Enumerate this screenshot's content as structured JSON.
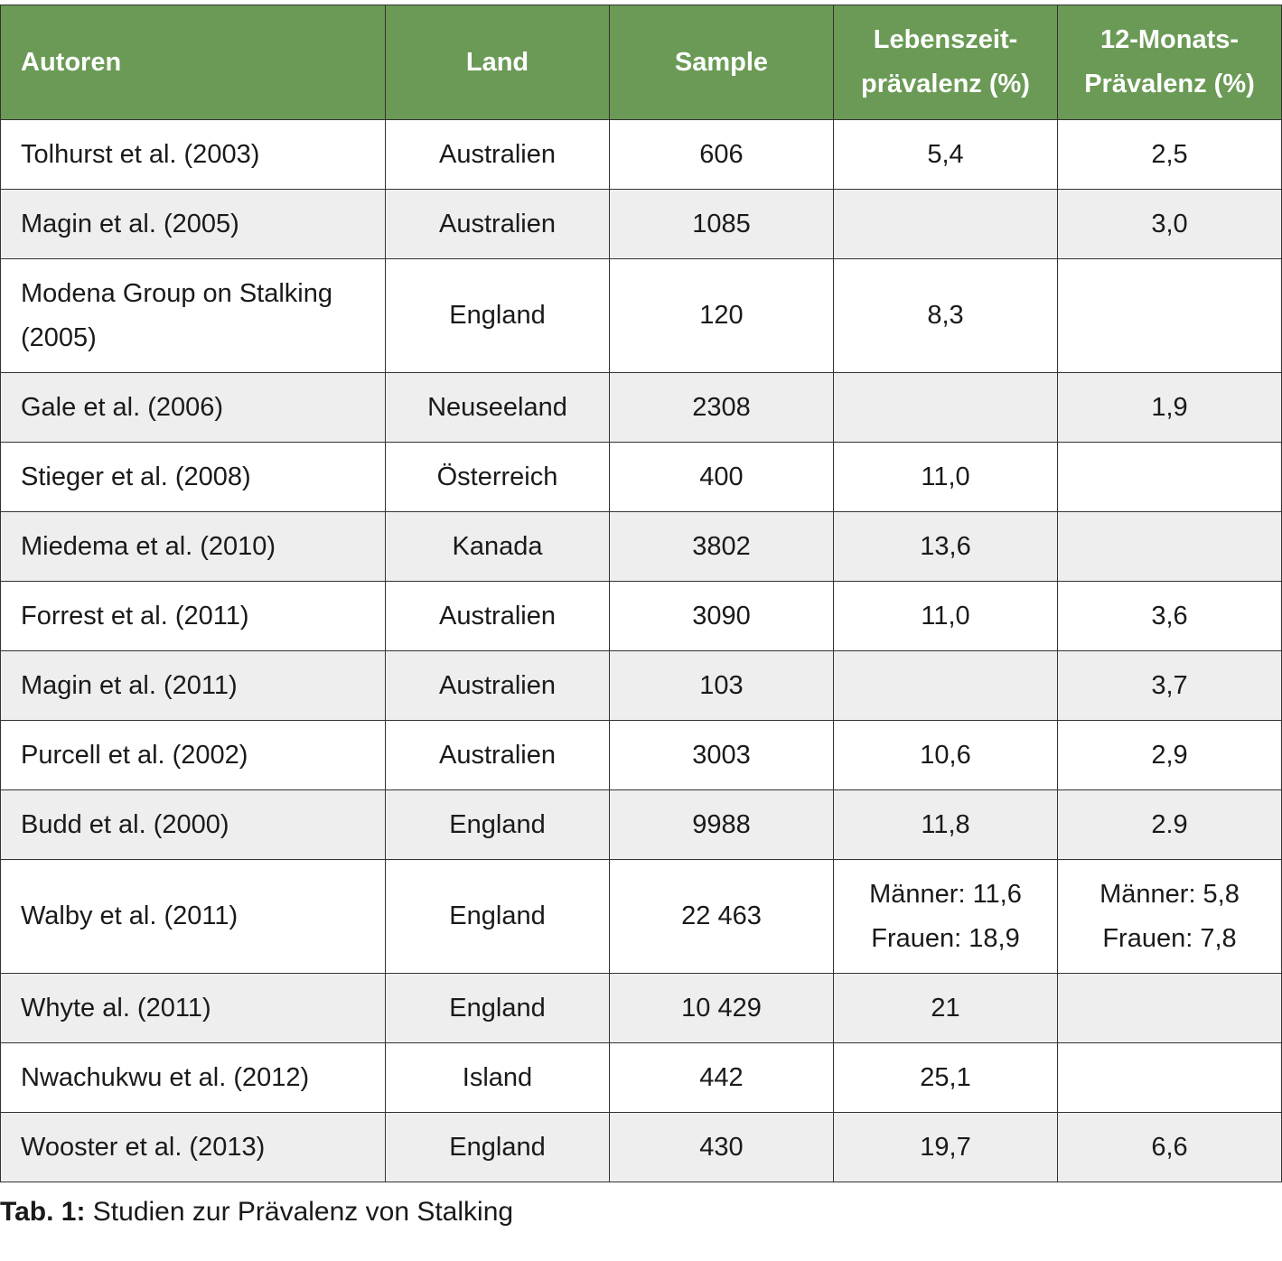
{
  "table": {
    "header": [
      [
        "Autoren"
      ],
      [
        "Land"
      ],
      [
        "Sample"
      ],
      [
        "Lebenszeit-",
        "prävalenz (%)"
      ],
      [
        "12-Monats-",
        "Prävalenz (%)"
      ]
    ],
    "rows": [
      [
        "Tolhurst et al. (2003)",
        "Australien",
        "606",
        "5,4",
        "2,5"
      ],
      [
        "Magin et al. (2005)",
        "Australien",
        "1085",
        null,
        "3,0"
      ],
      [
        "Modena Group on Stalking (2005)",
        "England",
        "120",
        "8,3",
        null
      ],
      [
        "Gale et al. (2006)",
        "Neuseeland",
        "2308",
        null,
        "1,9"
      ],
      [
        "Stieger et al. (2008)",
        "Österreich",
        "400",
        "11,0",
        null
      ],
      [
        "Miedema et al. (2010)",
        "Kanada",
        "3802",
        "13,6",
        null
      ],
      [
        "Forrest et al. (2011)",
        "Australien",
        "3090",
        "11,0",
        "3,6"
      ],
      [
        "Magin et al. (2011)",
        "Australien",
        "103",
        null,
        "3,7"
      ],
      [
        "Purcell et al. (2002)",
        "Australien",
        "3003",
        "10,6",
        "2,9"
      ],
      [
        "Budd et al. (2000)",
        "England",
        "9988",
        "11,8",
        "2.9"
      ],
      [
        "Walby et al. (2011)",
        "England",
        "22 463",
        [
          "Männer: 11,6",
          "Frauen: 18,9"
        ],
        [
          "Männer: 5,8",
          "Frauen: 7,8"
        ]
      ],
      [
        "Whyte al. (2011)",
        "England",
        "10 429",
        "21",
        null
      ],
      [
        "Nwachukwu et al.  (2012)",
        "Island",
        "442",
        "25,1",
        null
      ],
      [
        "Wooster et al. (2013)",
        "England",
        "430",
        "19,7",
        "6,6"
      ]
    ]
  },
  "caption": {
    "label": "Tab. 1:",
    "text": "Studien zur Prävalenz von Stalking"
  }
}
